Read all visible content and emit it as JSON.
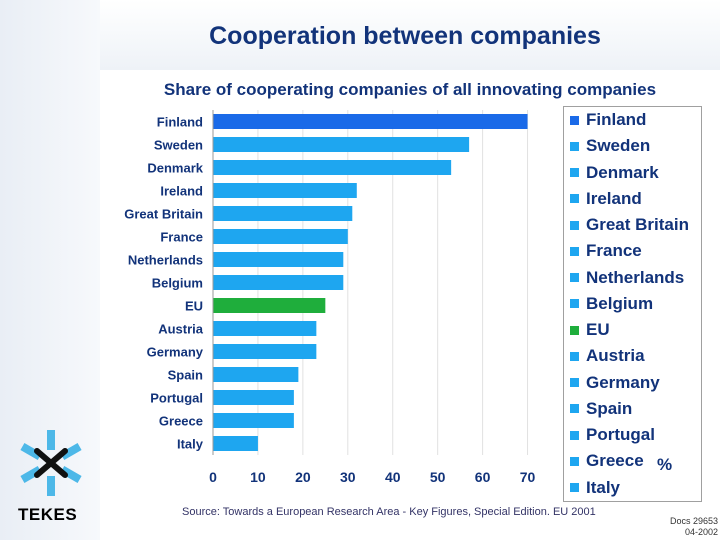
{
  "slide": {
    "title": "Cooperation between companies",
    "subtitle": "Share of cooperating companies of all innovating companies",
    "unit": "%",
    "source": "Source: Towards a European Research Area - Key Figures, Special Edition. EU 2001",
    "doc_id": "Docs 29653",
    "doc_date": "04-2002",
    "logo_text": "TEKES"
  },
  "colors": {
    "bar_default": "#1ea6f0",
    "bar_highlight": "#1a6ae8",
    "bar_eu": "#1fae3c",
    "text": "#12337a"
  },
  "chart_data": {
    "type": "bar",
    "orientation": "horizontal",
    "categories": [
      "Finland",
      "Sweden",
      "Denmark",
      "Ireland",
      "Great Britain",
      "France",
      "Netherlands",
      "Belgium",
      "EU",
      "Austria",
      "Germany",
      "Spain",
      "Portugal",
      "Greece",
      "Italy"
    ],
    "values": [
      70,
      57,
      53,
      32,
      31,
      30,
      29,
      29,
      25,
      23,
      23,
      19,
      18,
      18,
      10
    ],
    "highlight": {
      "Finland": "bar_highlight",
      "EU": "bar_eu"
    },
    "xticks": [
      0,
      10,
      20,
      30,
      40,
      50,
      60,
      70
    ],
    "xlim": [
      0,
      75
    ],
    "grid": true,
    "legend": "right"
  }
}
